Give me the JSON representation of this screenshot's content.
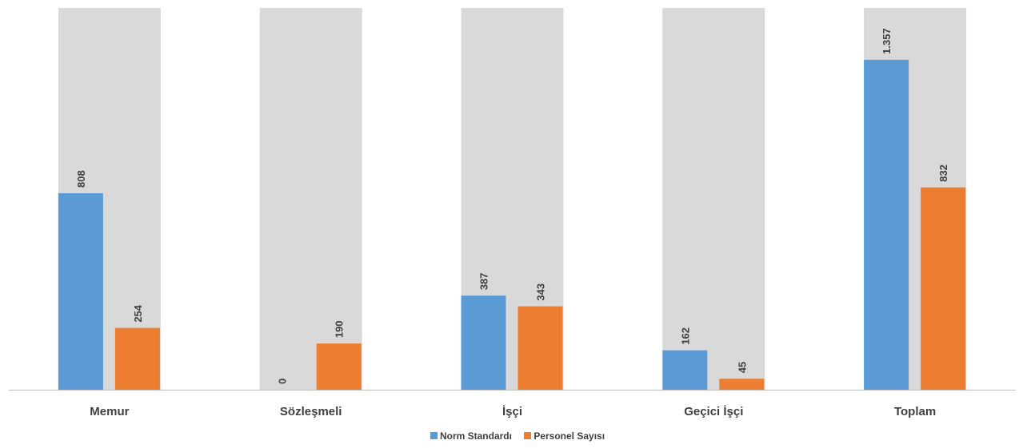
{
  "chart_data": {
    "type": "bar",
    "categories": [
      "Memur",
      "Sözleşmeli",
      "İşçi",
      "Geçici İşçi",
      "Toplam"
    ],
    "series": [
      {
        "name": "Norm Standardı",
        "values": [
          808,
          0,
          387,
          162,
          1357
        ],
        "value_labels": [
          "808",
          "0",
          "387",
          "162",
          "1.357"
        ],
        "color": "#5b9bd5"
      },
      {
        "name": "Personel Sayısı",
        "values": [
          254,
          190,
          343,
          45,
          832
        ],
        "value_labels": [
          "254",
          "190",
          "343",
          "45",
          "832"
        ],
        "color": "#ed7d31"
      }
    ],
    "category_background_color": "#d9d9d9",
    "ylim": [
      0,
      1570
    ],
    "grid": false,
    "legend_position": "bottom",
    "title": "",
    "xlabel": "",
    "ylabel": ""
  }
}
